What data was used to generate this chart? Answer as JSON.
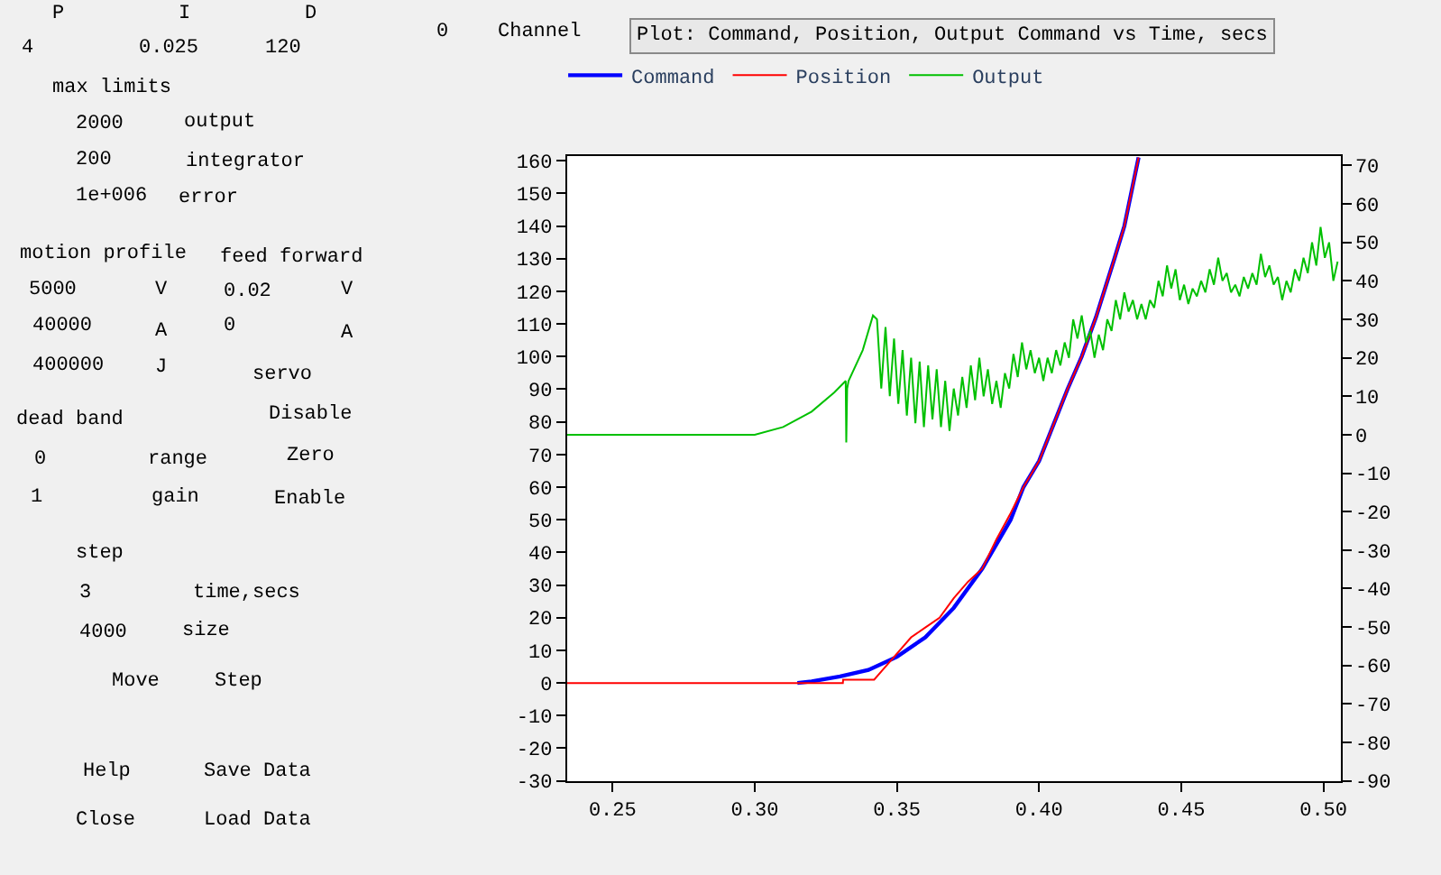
{
  "chart_data": [
    {
      "type": "other",
      "annotations": [
        "P",
        "I",
        "D",
        "4",
        "0.025",
        "120",
        "max limits",
        "2000",
        "output",
        "200",
        "integrator",
        "1e+006",
        "error",
        "motion profile",
        "5000",
        "V",
        "40000",
        "A",
        "400000",
        "J",
        "feed forward",
        "0.02",
        "V",
        "0",
        "A",
        "servo",
        "Disable",
        "Zero",
        "Enable",
        "dead band",
        "0",
        "range",
        "1",
        "gain",
        "step",
        "3",
        "time,secs",
        "4000",
        "size",
        "Move",
        "Step",
        "Help",
        "Save Data",
        "Close",
        "Load Data",
        "0",
        "Channel"
      ]
    },
    {
      "type": "line",
      "title": "Plot: Command, Position, Output Command vs Time, secs",
      "xlim": [
        0.234,
        0.506
      ],
      "ylim": [
        -30,
        161.5
      ],
      "y2lim": [
        -90,
        72.5
      ],
      "xticks": [
        0.25,
        {
          "value": 0.3,
          "label": "0.30"
        },
        0.35,
        {
          "value": 0.4,
          "label": "0.40"
        },
        0.45,
        {
          "value": 0.5,
          "label": "0.50"
        }
      ],
      "yticks": [
        -30,
        -20,
        -10,
        0,
        10,
        20,
        30,
        40,
        50,
        60,
        70,
        80,
        90,
        100,
        110,
        120,
        130,
        140,
        150,
        160
      ],
      "y2ticks": [
        -90,
        -80,
        -70,
        -60,
        -50,
        -40,
        -30,
        -20,
        -10,
        0,
        10,
        20,
        30,
        40,
        50,
        60,
        70
      ],
      "grid": false,
      "legend": "top",
      "marker": "none",
      "line_style": "solid",
      "series": [
        {
          "name": "Command",
          "color": "#0000ff",
          "x": [
            0.315,
            0.32,
            0.33,
            0.34,
            0.35,
            0.36,
            0.37,
            0.38,
            0.39,
            0.3945,
            0.4,
            0.41,
            0.415,
            0.42,
            0.4265,
            0.43,
            0.435
          ],
          "values": [
            0,
            0.5,
            2,
            4,
            8,
            14,
            23,
            35,
            50,
            60,
            68,
            90,
            100,
            112,
            130,
            140,
            161
          ]
        },
        {
          "name": "Position",
          "color": "#ff0000",
          "x": [
            0.234,
            0.331,
            0.3311,
            0.342,
            0.345,
            0.35,
            0.355,
            0.36,
            0.365,
            0.37,
            0.375,
            0.38,
            0.385,
            0.39,
            0.3945,
            0.4,
            0.41,
            0.415,
            0.42,
            0.4265,
            0.43,
            0.435
          ],
          "values": [
            0,
            0,
            1,
            1,
            4,
            9,
            14,
            17,
            20,
            26,
            31,
            35,
            44,
            52,
            60,
            68,
            90,
            100,
            112,
            130,
            140,
            161
          ]
        },
        {
          "name": "Output",
          "color": "#00c000",
          "axis": "y2",
          "x": [
            0.234,
            0.3,
            0.31,
            0.32,
            0.328,
            0.332,
            0.3322,
            0.3325,
            0.333,
            0.338,
            0.3416,
            0.343,
            0.3445,
            0.346,
            0.3475,
            0.349,
            0.3505,
            0.352,
            0.3535,
            0.355,
            0.3565,
            0.358,
            0.3595,
            0.361,
            0.3625,
            0.364,
            0.3655,
            0.367,
            0.3685,
            0.37,
            0.3715,
            0.373,
            0.3745,
            0.376,
            0.3775,
            0.379,
            0.3805,
            0.382,
            0.3835,
            0.385,
            0.3865,
            0.388,
            0.3895,
            0.391,
            0.3925,
            0.394,
            0.3955,
            0.397,
            0.3985,
            0.4,
            0.4015,
            0.403,
            0.4045,
            0.406,
            0.4075,
            0.409,
            0.4105,
            0.412,
            0.4135,
            0.415,
            0.4165,
            0.418,
            0.4195,
            0.421,
            0.4225,
            0.424,
            0.4255,
            0.427,
            0.4285,
            0.43,
            0.4315,
            0.433,
            0.4345,
            0.436,
            0.4375,
            0.439,
            0.4405,
            0.442,
            0.4435,
            0.445,
            0.4465,
            0.448,
            0.4495,
            0.451,
            0.4525,
            0.454,
            0.4555,
            0.457,
            0.4585,
            0.46,
            0.4615,
            0.463,
            0.4645,
            0.466,
            0.4675,
            0.469,
            0.4705,
            0.472,
            0.4735,
            0.475,
            0.4765,
            0.478,
            0.4795,
            0.481,
            0.4825,
            0.484,
            0.4855,
            0.487,
            0.4885,
            0.49,
            0.4915,
            0.493,
            0.4945,
            0.496,
            0.4975,
            0.499,
            0.5005,
            0.502,
            0.5035,
            0.505
          ],
          "values": [
            0,
            0,
            2,
            6,
            11,
            14,
            -2,
            12,
            14,
            22,
            31,
            30,
            12,
            28,
            10,
            25,
            8,
            22,
            5,
            20,
            3,
            19,
            2,
            18,
            4,
            17,
            2,
            14,
            1,
            12,
            5,
            15,
            7,
            18,
            9,
            20,
            10,
            17,
            8,
            14,
            7,
            16,
            12,
            21,
            15,
            24,
            17,
            22,
            16,
            20,
            14,
            20,
            16,
            22,
            18,
            24,
            20,
            30,
            25,
            31,
            24,
            27,
            20,
            26,
            22,
            30,
            27,
            35,
            30,
            37,
            32,
            35,
            30,
            34,
            30,
            35,
            33,
            40,
            36,
            44,
            38,
            43,
            35,
            39,
            34,
            38,
            36,
            40,
            37,
            43,
            39,
            46,
            40,
            42,
            37,
            39,
            36,
            41,
            38,
            42,
            39,
            47,
            41,
            44,
            39,
            41,
            35,
            40,
            37,
            43,
            40,
            46,
            42,
            50,
            44,
            54,
            46,
            50,
            40,
            45
          ]
        }
      ]
    }
  ]
}
